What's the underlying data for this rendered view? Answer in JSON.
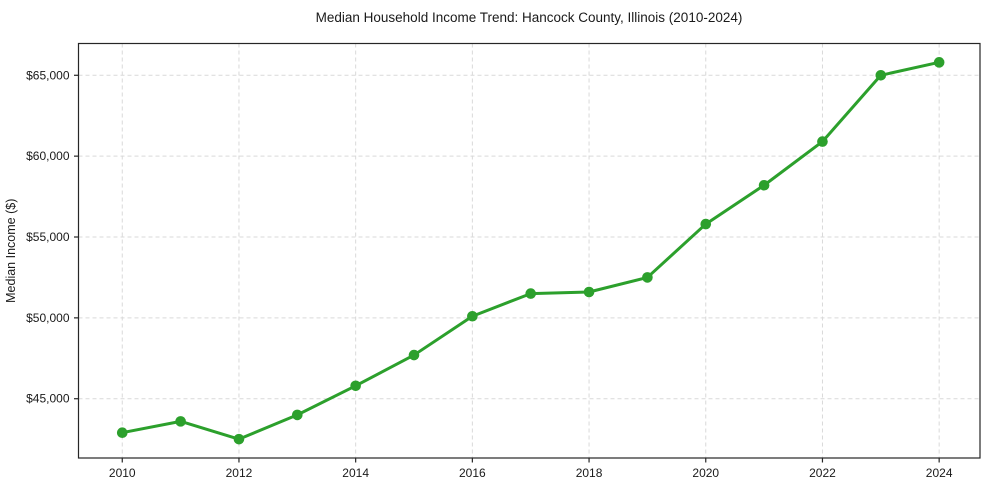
{
  "chart_data": {
    "type": "line",
    "title": "Median Household Income Trend: Hancock County, Illinois (2010-2024)",
    "ylabel": "Median Income ($)",
    "xlabel": "",
    "x": [
      2010,
      2011,
      2012,
      2013,
      2014,
      2015,
      2016,
      2017,
      2018,
      2019,
      2020,
      2021,
      2022,
      2023,
      2024
    ],
    "values": [
      42900,
      43600,
      42500,
      44000,
      45800,
      47700,
      50100,
      51500,
      51600,
      52500,
      55800,
      58200,
      60900,
      65000,
      65800
    ],
    "x_ticks": [
      {
        "value": 2010,
        "label": "2010"
      },
      {
        "value": 2012,
        "label": "2012"
      },
      {
        "value": 2014,
        "label": "2014"
      },
      {
        "value": 2016,
        "label": "2016"
      },
      {
        "value": 2018,
        "label": "2018"
      },
      {
        "value": 2020,
        "label": "2020"
      },
      {
        "value": 2022,
        "label": "2022"
      },
      {
        "value": 2024,
        "label": "2024"
      }
    ],
    "y_ticks": [
      {
        "value": 45000,
        "label": "$45,000"
      },
      {
        "value": 50000,
        "label": "$50,000"
      },
      {
        "value": 55000,
        "label": "$55,000"
      },
      {
        "value": 60000,
        "label": "$60,000"
      },
      {
        "value": 65000,
        "label": "$65,000"
      }
    ],
    "xlim": [
      2009.25,
      2024.7
    ],
    "ylim": [
      41335,
      66965
    ],
    "grid": true,
    "grid_style": "dashed",
    "legend": "none",
    "marker": "circle",
    "colors": {
      "line": "#2ca02c",
      "grid": "#d9d9d9",
      "spine": "#262626",
      "text": "#1a1a1a",
      "background": "#ffffff"
    }
  }
}
